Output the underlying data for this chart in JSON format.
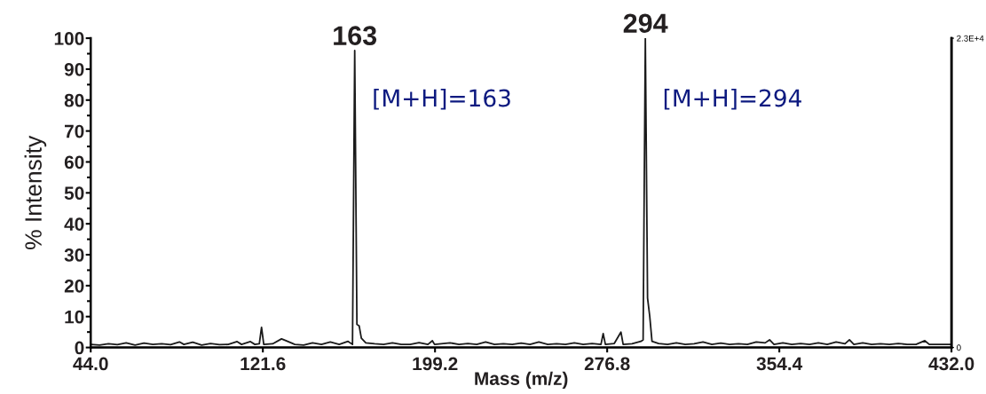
{
  "chart_data": {
    "type": "line",
    "xlabel": "Mass (m/z)",
    "ylabel": "% Intensity",
    "xlim": [
      44,
      432
    ],
    "ylim": [
      0,
      100
    ],
    "xticks": [
      {
        "value": 44,
        "label": "44.0"
      },
      121.6,
      199.2,
      276.8,
      354.4,
      {
        "value": 432,
        "label": "432.0"
      }
    ],
    "yticks": [
      0,
      10,
      20,
      30,
      40,
      50,
      60,
      70,
      80,
      90,
      100
    ],
    "y2lim": [
      0,
      23000
    ],
    "y2ticks": [
      0,
      {
        "value": 23000,
        "label": "2.3E+4"
      }
    ],
    "grid": false,
    "legend": false,
    "marker": "none",
    "line_style": "solid",
    "series": [
      {
        "color": "#1a1a1a",
        "x": [
          44,
          48,
          52,
          56,
          60,
          64,
          68,
          72,
          76,
          80,
          84,
          86,
          90,
          94,
          98,
          102,
          106,
          110,
          112,
          116,
          118,
          120,
          121,
          122,
          126,
          130,
          132,
          136,
          140,
          144,
          148,
          152,
          156,
          160,
          162,
          163,
          164,
          165,
          166,
          168,
          172,
          176,
          180,
          184,
          188,
          192,
          196,
          198,
          199,
          202,
          206,
          210,
          214,
          218,
          222,
          226,
          230,
          234,
          238,
          242,
          246,
          250,
          254,
          258,
          262,
          266,
          270,
          274,
          275,
          276,
          280,
          283,
          284,
          288,
          292,
          293,
          294,
          295,
          296,
          297,
          300,
          304,
          308,
          312,
          316,
          320,
          324,
          328,
          332,
          336,
          340,
          344,
          348,
          350,
          352,
          356,
          360,
          364,
          368,
          372,
          376,
          380,
          384,
          386,
          388,
          392,
          396,
          400,
          404,
          408,
          412,
          416,
          420,
          422,
          426,
          432
        ],
        "values": [
          1,
          0.8,
          1.2,
          0.9,
          1.5,
          0.8,
          1.4,
          1,
          1.2,
          0.9,
          1.8,
          1,
          1.7,
          0.8,
          1.3,
          0.9,
          1.0,
          1.9,
          1.0,
          1.9,
          1.0,
          1.2,
          6.5,
          1.0,
          1.2,
          2.8,
          2.2,
          1.0,
          0.8,
          1.5,
          1.0,
          1.8,
          1.0,
          2.0,
          1.0,
          96,
          7.5,
          7,
          3,
          1.5,
          1.2,
          1.0,
          1.5,
          1.0,
          1.0,
          1.6,
          1.0,
          2.2,
          1.0,
          1.2,
          1.5,
          1.0,
          1.3,
          1.0,
          1.8,
          1.0,
          1.2,
          1.0,
          1.4,
          1.0,
          1.8,
          1.0,
          1.2,
          1.0,
          1.5,
          1.0,
          1.3,
          1.0,
          4.5,
          1.0,
          1.3,
          5.0,
          1.0,
          1.2,
          2.0,
          2.5,
          100,
          16,
          10,
          2,
          1.3,
          1.0,
          1.5,
          1.0,
          1.2,
          1.8,
          1.0,
          1.4,
          1.0,
          1.2,
          1.0,
          1.8,
          1.5,
          2.5,
          1.0,
          1.5,
          1.0,
          1.3,
          1.0,
          1.5,
          1.0,
          1.8,
          1.2,
          2.5,
          1.0,
          1.5,
          1.0,
          1.2,
          1.0,
          1.3,
          1.0,
          1.0,
          2.2,
          1.0,
          1.0,
          1.0
        ]
      }
    ],
    "annotations": [
      {
        "text": "163",
        "x": 163,
        "y": 96
      },
      {
        "text": "294",
        "x": 294,
        "y": 100
      },
      "[M+H]=163",
      "[M+H]=294"
    ]
  }
}
